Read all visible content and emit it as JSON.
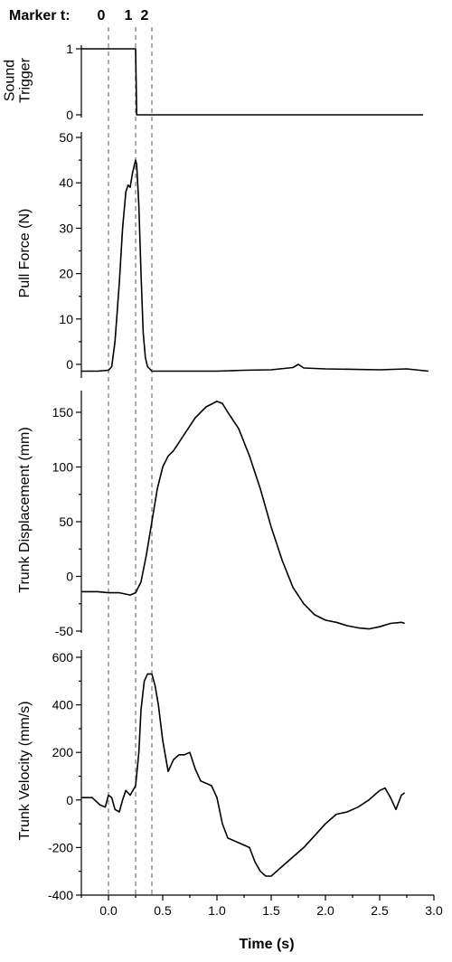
{
  "chart_data": {
    "type": "line",
    "x_axis": {
      "label": "Time (s)",
      "range": [
        -0.25,
        3.0
      ],
      "ticks": [
        "0.0",
        "0.5",
        "1.0",
        "1.5",
        "2.0",
        "2.5",
        "3.0"
      ],
      "tick_values": [
        0.0,
        0.5,
        1.0,
        1.5,
        2.0,
        2.5,
        3.0
      ]
    },
    "markers": {
      "title": "Marker t:",
      "items": [
        {
          "label": "0",
          "x": 0.0
        },
        {
          "label": "1",
          "x": 0.25
        },
        {
          "label": "2",
          "x": 0.4
        }
      ]
    },
    "panels": [
      {
        "id": "sound",
        "ylabel_lines": [
          "Sound",
          "Trigger"
        ],
        "ylim": [
          -0.15,
          1.15
        ],
        "yticks": [
          0,
          1
        ],
        "ytick_labels": [
          "0",
          "1"
        ],
        "series": {
          "x": [
            -0.25,
            0.25,
            0.25,
            0.26,
            2.9
          ],
          "y": [
            1,
            1,
            1,
            0,
            0
          ]
        }
      },
      {
        "id": "force",
        "ylabel_lines": [
          "Pull Force (N)"
        ],
        "ylim": [
          -3,
          50
        ],
        "yticks": [
          0,
          10,
          20,
          30,
          40,
          50
        ],
        "ytick_labels": [
          "0",
          "10",
          "20",
          "30",
          "40",
          "50"
        ],
        "series": {
          "x": [
            -0.25,
            -0.1,
            0.0,
            0.03,
            0.06,
            0.1,
            0.13,
            0.16,
            0.18,
            0.2,
            0.22,
            0.24,
            0.25,
            0.26,
            0.28,
            0.3,
            0.32,
            0.34,
            0.36,
            0.4,
            0.5,
            0.75,
            1.0,
            1.25,
            1.5,
            1.7,
            1.75,
            1.8,
            2.0,
            2.5,
            2.75,
            2.95
          ],
          "y": [
            -1.5,
            -1.5,
            -1.3,
            -0.5,
            5,
            18,
            30,
            38,
            39.5,
            39,
            42,
            44,
            45,
            44,
            35,
            20,
            7,
            1.5,
            -0.5,
            -1.5,
            -1.5,
            -1.5,
            -1.5,
            -1.3,
            -1.2,
            -0.7,
            0,
            -0.8,
            -1,
            -1.2,
            -1,
            -1.5
          ]
        }
      },
      {
        "id": "displacement",
        "ylabel_lines": [
          "Trunk Displacement (mm)"
        ],
        "ylim": [
          -50,
          170
        ],
        "yticks": [
          -50,
          0,
          50,
          100,
          150
        ],
        "ytick_labels": [
          "-50",
          "0",
          "50",
          "100",
          "150"
        ],
        "series": {
          "x": [
            -0.25,
            -0.1,
            0.0,
            0.1,
            0.2,
            0.25,
            0.3,
            0.35,
            0.4,
            0.45,
            0.5,
            0.55,
            0.6,
            0.7,
            0.8,
            0.9,
            1.0,
            1.05,
            1.1,
            1.2,
            1.3,
            1.4,
            1.5,
            1.6,
            1.7,
            1.8,
            1.9,
            2.0,
            2.1,
            2.2,
            2.3,
            2.4,
            2.5,
            2.6,
            2.7,
            2.73
          ],
          "y": [
            -14,
            -14,
            -15,
            -15,
            -17,
            -15,
            -5,
            20,
            50,
            80,
            100,
            110,
            115,
            130,
            145,
            155,
            160,
            158,
            150,
            135,
            110,
            80,
            45,
            15,
            -10,
            -25,
            -35,
            -40,
            -42,
            -45,
            -47,
            -48,
            -46,
            -43,
            -42,
            -43
          ]
        }
      },
      {
        "id": "velocity",
        "ylabel_lines": [
          "Trunk  Velocity (mm/s)"
        ],
        "ylim": [
          -400,
          600
        ],
        "yticks": [
          -400,
          -200,
          0,
          200,
          400,
          600
        ],
        "ytick_labels": [
          "-400",
          "-200",
          "0",
          "200",
          "400",
          "600"
        ],
        "series": {
          "x": [
            -0.25,
            -0.15,
            -0.08,
            -0.03,
            0.0,
            0.03,
            0.06,
            0.1,
            0.13,
            0.16,
            0.2,
            0.25,
            0.28,
            0.3,
            0.33,
            0.36,
            0.4,
            0.43,
            0.46,
            0.5,
            0.55,
            0.6,
            0.65,
            0.7,
            0.75,
            0.8,
            0.85,
            0.9,
            0.95,
            1.0,
            1.05,
            1.1,
            1.2,
            1.3,
            1.35,
            1.4,
            1.45,
            1.5,
            1.55,
            1.6,
            1.7,
            1.8,
            1.9,
            2.0,
            2.1,
            2.2,
            2.3,
            2.4,
            2.45,
            2.5,
            2.55,
            2.6,
            2.65,
            2.7,
            2.73
          ],
          "y": [
            10,
            10,
            -20,
            -30,
            20,
            10,
            -40,
            -50,
            0,
            40,
            20,
            60,
            200,
            380,
            500,
            530,
            530,
            480,
            400,
            250,
            120,
            170,
            190,
            190,
            200,
            130,
            80,
            70,
            60,
            10,
            -100,
            -160,
            -180,
            -200,
            -260,
            -300,
            -320,
            -320,
            -300,
            -280,
            -240,
            -200,
            -150,
            -100,
            -60,
            -50,
            -30,
            0,
            20,
            40,
            50,
            10,
            -40,
            20,
            30
          ]
        }
      }
    ]
  }
}
